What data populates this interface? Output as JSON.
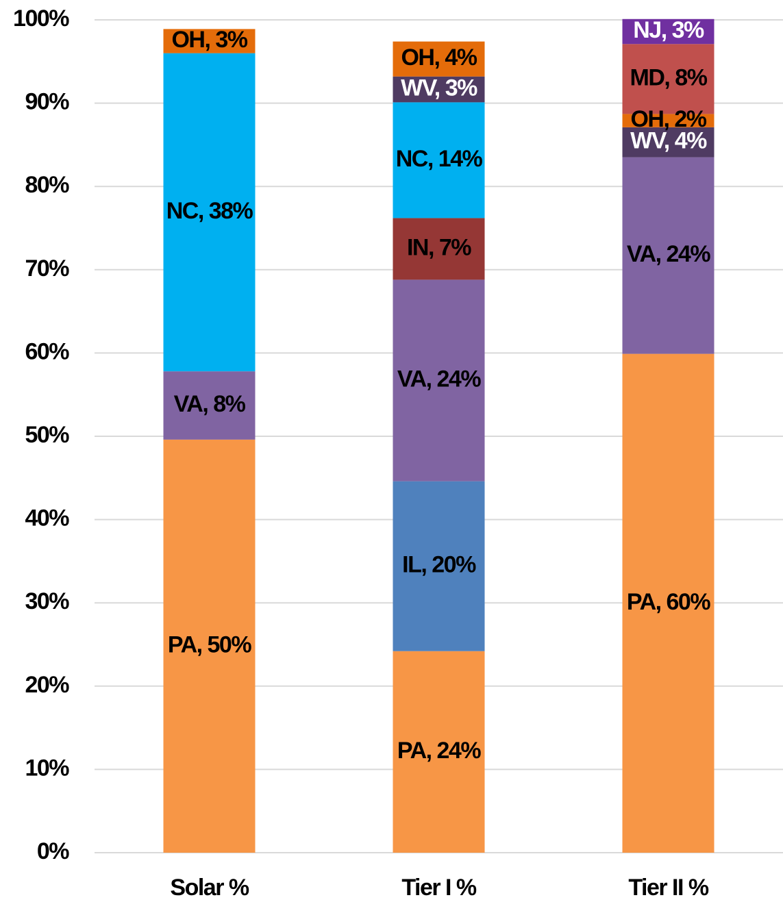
{
  "chart_data": {
    "type": "stacked_bar",
    "categories": [
      "Solar %",
      "Tier I %",
      "Tier II %"
    ],
    "series": [
      {
        "name": "PA",
        "color": "#f79646",
        "values": [
          49.6,
          24.2,
          59.9
        ],
        "value_labels": [
          "PA, 50%",
          "PA, 24%",
          "PA, 60%"
        ]
      },
      {
        "name": "IL",
        "color": "#4f81bd",
        "values": [
          null,
          20.4,
          null
        ],
        "value_labels": [
          null,
          "IL, 20%",
          null
        ]
      },
      {
        "name": "VA",
        "color": "#8064a2",
        "values": [
          8.2,
          24.2,
          23.6
        ],
        "value_labels": [
          "VA, 8%",
          "VA, 24%",
          "VA, 24%"
        ]
      },
      {
        "name": "IN",
        "color": "#953735",
        "values": [
          null,
          7.4,
          null
        ],
        "value_labels": [
          null,
          "IN, 7%",
          null
        ]
      },
      {
        "name": "NC",
        "color": "#00b0f0",
        "values": [
          38.2,
          13.9,
          null
        ],
        "value_labels": [
          "NC, 38%",
          "NC, 14%",
          null
        ]
      },
      {
        "name": "WV",
        "color": "#4f3b62",
        "values": [
          null,
          3.1,
          3.6
        ],
        "value_labels": [
          null,
          "WV, 3%",
          "WV, 4%"
        ]
      },
      {
        "name": "OH",
        "color": "#e46c0a",
        "values": [
          2.9,
          4.2,
          1.6
        ],
        "value_labels": [
          "OH, 3%",
          "OH, 4%",
          "OH, 2%"
        ]
      },
      {
        "name": "MD",
        "color": "#c0504d",
        "values": [
          null,
          null,
          8.4
        ],
        "value_labels": [
          null,
          null,
          "MD, 8%"
        ]
      },
      {
        "name": "NJ",
        "color": "#7030a0",
        "values": [
          null,
          null,
          3.0
        ],
        "value_labels": [
          null,
          null,
          "NJ, 3%"
        ]
      }
    ],
    "ylim": [
      0,
      100
    ],
    "yticks": [
      {
        "value": 0,
        "label": "0%"
      },
      {
        "value": 10,
        "label": "10%"
      },
      {
        "value": 20,
        "label": "20%"
      },
      {
        "value": 30,
        "label": "30%"
      },
      {
        "value": 40,
        "label": "40%"
      },
      {
        "value": 50,
        "label": "50%"
      },
      {
        "value": 60,
        "label": "60%"
      },
      {
        "value": 70,
        "label": "70%"
      },
      {
        "value": 80,
        "label": "80%"
      },
      {
        "value": 90,
        "label": "90%"
      },
      {
        "value": 100,
        "label": "100%"
      }
    ],
    "grid": true
  }
}
